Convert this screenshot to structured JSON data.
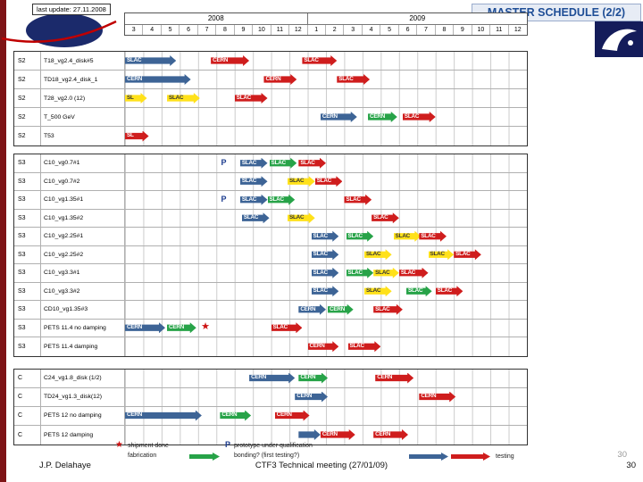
{
  "slide": {
    "last_update": "last update: 27.11.2008",
    "title": "MASTER SCHEDULE (2/2)",
    "footer": {
      "author": "J.P. Delahaye",
      "meeting": "CTF3 Technical meeting (27/01/09)",
      "page": "30",
      "page_ghost": "30"
    }
  },
  "colors": {
    "blue": "#3d6496",
    "red": "#cf1d1d",
    "green": "#27a348",
    "yellow": "#ffe11a",
    "navy": "#1b2a6b",
    "title_blue": "#1f4e96",
    "marker_star": "#cc1111",
    "marker_p": "#1d3d8f"
  },
  "chart_data": {
    "type": "bar",
    "subtype": "gantt-schedule",
    "title": "MASTER SCHEDULE (2/2)",
    "x_axis": {
      "unit": "months",
      "total_months": 22,
      "years": [
        {
          "label": "2008",
          "months": [
            "3",
            "4",
            "5",
            "6",
            "7",
            "8",
            "9",
            "10",
            "11",
            "12"
          ]
        },
        {
          "label": "2009",
          "months": [
            "1",
            "2",
            "3",
            "4",
            "5",
            "6",
            "7",
            "8",
            "9",
            "10",
            "11",
            "12"
          ]
        }
      ]
    },
    "sections": [
      {
        "name": "stage-S2",
        "rows": [
          {
            "cat": "S2",
            "name": "T18_vg2.4_disk#5",
            "bars": [
              {
                "label": "SLAC",
                "color": "blue",
                "start": 0,
                "span": 2.8
              },
              {
                "label": "CERN",
                "color": "red",
                "start": 4.7,
                "span": 2.1
              },
              {
                "label": "SLAC",
                "color": "red",
                "start": 9.7,
                "span": 1.9
              }
            ]
          },
          {
            "cat": "S2",
            "name": "TD18_vg2.4_disk_1",
            "bars": [
              {
                "label": "CERN",
                "color": "blue",
                "start": 0,
                "span": 3.6
              },
              {
                "label": "CERN",
                "color": "red",
                "start": 7.6,
                "span": 1.8
              },
              {
                "label": "SLAC",
                "color": "red",
                "start": 11.6,
                "span": 1.8
              }
            ]
          },
          {
            "cat": "S2",
            "name": "T28_vg2.0 (12)",
            "bars": [
              {
                "label": "SL",
                "color": "yellow",
                "start": 0,
                "span": 1.2
              },
              {
                "label": "SLAC",
                "color": "yellow",
                "start": 2.3,
                "span": 1.8
              },
              {
                "label": "SLAC",
                "color": "red",
                "start": 6.0,
                "span": 1.8
              }
            ]
          },
          {
            "cat": "S2",
            "name": "T_500 GeV",
            "bars": [
              {
                "label": "CERN",
                "color": "blue",
                "start": 10.7,
                "span": 2.0
              },
              {
                "label": "CERN",
                "color": "green",
                "start": 13.3,
                "span": 1.6
              },
              {
                "label": "SLAC",
                "color": "red",
                "start": 15.2,
                "span": 1.8
              }
            ]
          },
          {
            "cat": "S2",
            "name": "T53",
            "bars": [
              {
                "label": "SL",
                "color": "red",
                "start": 0,
                "span": 1.3
              }
            ]
          }
        ]
      },
      {
        "name": "stage-S3",
        "rows": [
          {
            "cat": "S3",
            "name": "C10_vg0.7#1",
            "markers": [
              {
                "type": "P",
                "at": 5.4
              }
            ],
            "bars": [
              {
                "label": "SLAC",
                "color": "blue",
                "start": 6.3,
                "span": 1.5
              },
              {
                "label": "SLAC",
                "color": "green",
                "start": 7.9,
                "span": 1.5
              },
              {
                "label": "SLAC",
                "color": "red",
                "start": 9.5,
                "span": 1.5
              }
            ]
          },
          {
            "cat": "S3",
            "name": "C10_vg0.7#2",
            "bars": [
              {
                "label": "SLAC",
                "color": "blue",
                "start": 6.3,
                "span": 1.5
              },
              {
                "label": "SLAC",
                "color": "yellow",
                "start": 8.9,
                "span": 1.5
              },
              {
                "label": "SLAC",
                "color": "red",
                "start": 10.4,
                "span": 1.5
              }
            ]
          },
          {
            "cat": "S3",
            "name": "C10_vg1.35#1",
            "markers": [
              {
                "type": "P",
                "at": 5.4
              }
            ],
            "bars": [
              {
                "label": "SLAC",
                "color": "blue",
                "start": 6.3,
                "span": 1.5
              },
              {
                "label": "SLAC",
                "color": "green",
                "start": 7.8,
                "span": 1.5
              },
              {
                "label": "SLAC",
                "color": "red",
                "start": 12.0,
                "span": 1.5
              }
            ]
          },
          {
            "cat": "S3",
            "name": "C10_vg1.35#2",
            "bars": [
              {
                "label": "SLAC",
                "color": "blue",
                "start": 6.4,
                "span": 1.5
              },
              {
                "label": "SLAC",
                "color": "yellow",
                "start": 8.9,
                "span": 1.5
              },
              {
                "label": "SLAC",
                "color": "red",
                "start": 13.5,
                "span": 1.5
              }
            ]
          },
          {
            "cat": "S3",
            "name": "C10_vg2.25#1",
            "bars": [
              {
                "label": "SLAC",
                "color": "blue",
                "start": 10.2,
                "span": 1.5
              },
              {
                "label": "SLAC",
                "color": "green",
                "start": 12.1,
                "span": 1.5
              },
              {
                "label": "SLAC",
                "color": "yellow",
                "start": 14.7,
                "span": 1.5
              },
              {
                "label": "SLAC",
                "color": "red",
                "start": 16.1,
                "span": 1.5
              }
            ]
          },
          {
            "cat": "S3",
            "name": "C10_vg2.25#2",
            "bars": [
              {
                "label": "SLAC",
                "color": "blue",
                "start": 10.2,
                "span": 1.5
              },
              {
                "label": "SLAC",
                "color": "yellow",
                "start": 13.1,
                "span": 1.5
              },
              {
                "label": "SLAC",
                "color": "yellow",
                "start": 16.6,
                "span": 1.4
              },
              {
                "label": "SLAC",
                "color": "red",
                "start": 18.0,
                "span": 1.5
              }
            ]
          },
          {
            "cat": "S3",
            "name": "C10_vg3.3#1",
            "bars": [
              {
                "label": "SLAC",
                "color": "blue",
                "start": 10.2,
                "span": 1.5
              },
              {
                "label": "SLAC",
                "color": "green",
                "start": 12.1,
                "span": 1.5
              },
              {
                "label": "SLAC",
                "color": "yellow",
                "start": 13.6,
                "span": 1.4
              },
              {
                "label": "SLAC",
                "color": "red",
                "start": 15.0,
                "span": 1.6
              }
            ]
          },
          {
            "cat": "S3",
            "name": "C10_vg3.3#2",
            "bars": [
              {
                "label": "SLAC",
                "color": "blue",
                "start": 10.2,
                "span": 1.5
              },
              {
                "label": "SLAC",
                "color": "yellow",
                "start": 13.1,
                "span": 1.5
              },
              {
                "label": "SLAC",
                "color": "green",
                "start": 15.4,
                "span": 1.4
              },
              {
                "label": "SLAC",
                "color": "red",
                "start": 17.0,
                "span": 1.5
              }
            ]
          },
          {
            "cat": "S3",
            "name": "CD10_vg1.35#3",
            "bars": [
              {
                "label": "CERN",
                "color": "blue",
                "start": 9.5,
                "span": 1.5
              },
              {
                "label": "CERN",
                "color": "green",
                "start": 11.1,
                "span": 1.4
              },
              {
                "label": "SLAC",
                "color": "red",
                "start": 13.6,
                "span": 1.6
              }
            ]
          },
          {
            "cat": "S3",
            "name": "PETS 11.4 no damping",
            "markers": [
              {
                "type": "star",
                "at": 4.4
              }
            ],
            "bars": [
              {
                "label": "CERN",
                "color": "blue",
                "start": 0,
                "span": 2.2
              },
              {
                "label": "CERN",
                "color": "green",
                "start": 2.3,
                "span": 1.6
              },
              {
                "label": "SLAC",
                "color": "red",
                "start": 8.0,
                "span": 1.7
              }
            ]
          },
          {
            "cat": "S3",
            "name": "PETS 11.4 damping",
            "bars": [
              {
                "label": "CERN",
                "color": "red",
                "start": 10.0,
                "span": 1.7
              },
              {
                "label": "SLAC",
                "color": "red",
                "start": 12.2,
                "span": 1.8
              }
            ]
          }
        ]
      },
      {
        "name": "stage-C",
        "rows": [
          {
            "cat": "C",
            "name": "C24_vg1.8_disk (1/2)",
            "bars": [
              {
                "label": "CERN",
                "color": "blue",
                "start": 6.8,
                "span": 2.5
              },
              {
                "label": "CERN",
                "color": "green",
                "start": 9.5,
                "span": 1.6
              },
              {
                "label": "CERN",
                "color": "red",
                "start": 13.7,
                "span": 2.1
              }
            ]
          },
          {
            "cat": "C",
            "name": "TD24_vg1.3_disk(12)",
            "bars": [
              {
                "label": "CERN",
                "color": "blue",
                "start": 9.3,
                "span": 1.8
              },
              {
                "label": "CERN",
                "color": "red",
                "start": 16.1,
                "span": 2.0
              }
            ]
          },
          {
            "cat": "C",
            "name": "PETS 12 no damping",
            "bars": [
              {
                "label": "CERN",
                "color": "blue",
                "start": 0,
                "span": 4.2
              },
              {
                "label": "CERN",
                "color": "green",
                "start": 5.2,
                "span": 1.7
              },
              {
                "label": "CERN",
                "color": "red",
                "start": 8.2,
                "span": 1.9
              }
            ]
          },
          {
            "cat": "C",
            "name": "PETS 12 damping",
            "bars": [
              {
                "label": "",
                "color": "blue",
                "start": 9.5,
                "span": 1.2
              },
              {
                "label": "CERN",
                "color": "red",
                "start": 10.7,
                "span": 1.9
              },
              {
                "label": "CERN",
                "color": "red",
                "start": 13.6,
                "span": 1.9
              }
            ]
          }
        ]
      }
    ],
    "legend": [
      {
        "icon": "star",
        "label": "shipment done"
      },
      {
        "icon": "arrow-green",
        "label": "fabrication"
      },
      {
        "icon": "P",
        "label": "prototype under qualification"
      },
      {
        "icon": "arrow-blue",
        "label": "bonding? (first testing?)"
      },
      {
        "icon": "arrow-red",
        "label": "testing"
      }
    ]
  }
}
